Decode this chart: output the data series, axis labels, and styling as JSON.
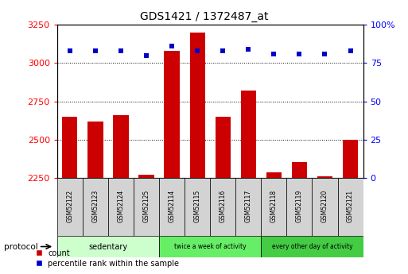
{
  "title": "GDS1421 / 1372487_at",
  "samples": [
    "GSM52122",
    "GSM52123",
    "GSM52124",
    "GSM52125",
    "GSM52114",
    "GSM52115",
    "GSM52116",
    "GSM52117",
    "GSM52118",
    "GSM52119",
    "GSM52120",
    "GSM52121"
  ],
  "counts": [
    2650,
    2620,
    2660,
    2270,
    3080,
    3200,
    2650,
    2820,
    2290,
    2355,
    2260,
    2500
  ],
  "percentile": [
    83,
    83,
    83,
    80,
    86,
    83,
    83,
    84,
    81,
    81,
    81,
    83
  ],
  "ylim_left": [
    2250,
    3250
  ],
  "ylim_right": [
    0,
    100
  ],
  "yticks_left": [
    2250,
    2500,
    2750,
    3000,
    3250
  ],
  "yticks_right": [
    0,
    25,
    50,
    75,
    100
  ],
  "groups": [
    {
      "label": "sedentary",
      "start": 0,
      "end": 4,
      "color": "#ccffcc"
    },
    {
      "label": "twice a week of activity",
      "start": 4,
      "end": 8,
      "color": "#66ee66"
    },
    {
      "label": "every other day of activity",
      "start": 8,
      "end": 12,
      "color": "#44cc44"
    }
  ],
  "bar_color": "#cc0000",
  "dot_color": "#0000cc",
  "bar_width": 0.6,
  "background_color": "#ffffff",
  "protocol_label": "protocol",
  "legend_count": "count",
  "legend_pct": "percentile rank within the sample",
  "sample_box_color": "#d3d3d3",
  "figsize": [
    5.13,
    3.45
  ],
  "dpi": 100
}
